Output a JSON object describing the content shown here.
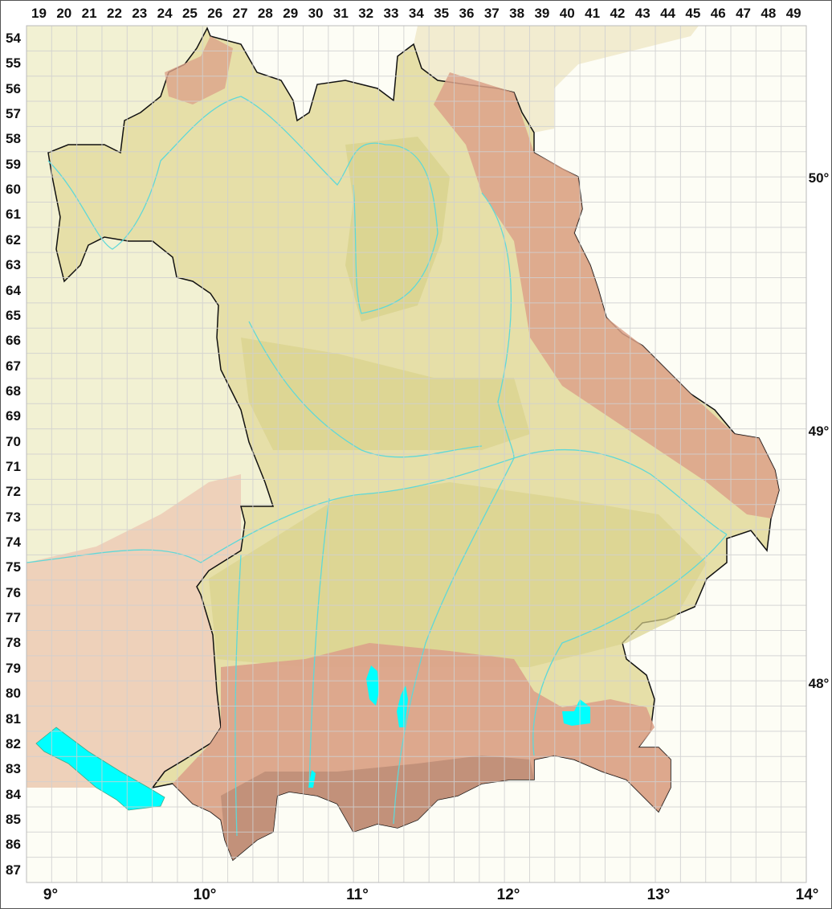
{
  "map": {
    "grid_columns": [
      "19",
      "20",
      "21",
      "22",
      "23",
      "24",
      "25",
      "26",
      "27",
      "28",
      "29",
      "30",
      "31",
      "32",
      "33",
      "34",
      "35",
      "36",
      "37",
      "38",
      "39",
      "40",
      "41",
      "42",
      "43",
      "44",
      "45",
      "46",
      "47",
      "48",
      "49"
    ],
    "grid_rows": [
      "54",
      "55",
      "56",
      "57",
      "58",
      "59",
      "60",
      "61",
      "62",
      "63",
      "64",
      "65",
      "66",
      "67",
      "68",
      "69",
      "70",
      "71",
      "72",
      "73",
      "74",
      "75",
      "76",
      "77",
      "78",
      "79",
      "80",
      "81",
      "82",
      "83",
      "84",
      "85",
      "86",
      "87"
    ],
    "longitude_labels": [
      "9°",
      "10°",
      "11°",
      "12°",
      "13°",
      "14°"
    ],
    "latitude_labels": [
      "50°",
      "49°",
      "48°"
    ],
    "colors": {
      "lowland": "#e9e2b8",
      "upland": "#d9d38e",
      "highland": "#dca28a",
      "alps": "#b88a74",
      "outside": "#f3f2d6",
      "water": "#00ffff",
      "river": "#5fd8d8",
      "border": "#111111",
      "grid": "#d8d8d8"
    }
  }
}
